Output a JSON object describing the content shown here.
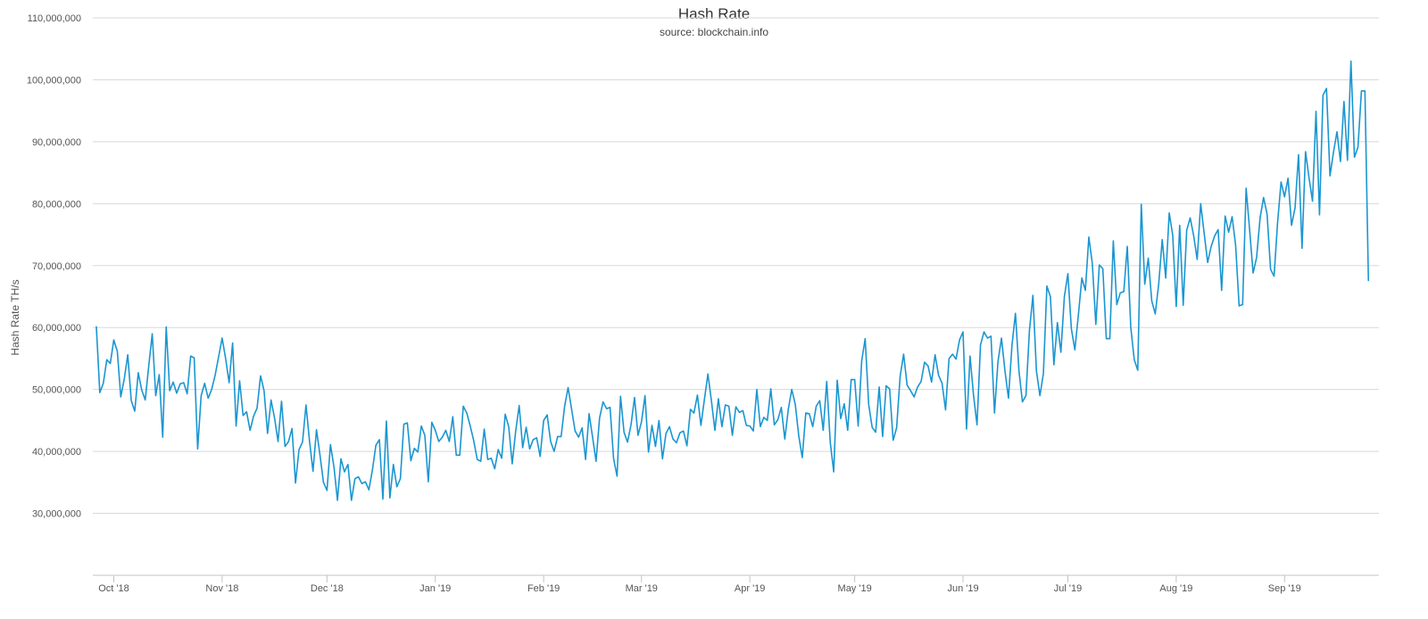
{
  "chart_data": {
    "type": "line",
    "title": "Hash Rate",
    "subtitle": "source: blockchain.info",
    "xlabel": "",
    "ylabel": "Hash Rate TH/s",
    "ylim": [
      20000000,
      110000000
    ],
    "yticks": [
      {
        "value": 30000000,
        "label": "30,000,000"
      },
      {
        "value": 40000000,
        "label": "40,000,000"
      },
      {
        "value": 50000000,
        "label": "50,000,000"
      },
      {
        "value": 60000000,
        "label": "60,000,000"
      },
      {
        "value": 70000000,
        "label": "70,000,000"
      },
      {
        "value": 80000000,
        "label": "80,000,000"
      },
      {
        "value": 90000000,
        "label": "90,000,000"
      },
      {
        "value": 100000000,
        "label": "100,000,000"
      },
      {
        "value": 110000000,
        "label": "110,000,000"
      }
    ],
    "xlim": [
      "2018-09-25",
      "2019-09-28"
    ],
    "xticks": [
      {
        "date": "2018-10-01",
        "label": "Oct '18"
      },
      {
        "date": "2018-11-01",
        "label": "Nov '18"
      },
      {
        "date": "2018-12-01",
        "label": "Dec '18"
      },
      {
        "date": "2019-01-01",
        "label": "Jan '19"
      },
      {
        "date": "2019-02-01",
        "label": "Feb '19"
      },
      {
        "date": "2019-03-01",
        "label": "Mar '19"
      },
      {
        "date": "2019-04-01",
        "label": "Apr '19"
      },
      {
        "date": "2019-05-01",
        "label": "May '19"
      },
      {
        "date": "2019-06-01",
        "label": "Jun '19"
      },
      {
        "date": "2019-07-01",
        "label": "Jul '19"
      },
      {
        "date": "2019-08-01",
        "label": "Aug '19"
      },
      {
        "date": "2019-09-01",
        "label": "Sep '19"
      }
    ],
    "grid": true,
    "legend": "none",
    "line_color": "#1a96d1",
    "series": [
      {
        "start_date": "2018-09-26",
        "step_days": 1,
        "values": [
          60.2,
          49.5,
          51.0,
          54.8,
          54.2,
          58.0,
          56.2,
          48.8,
          51.7,
          55.6,
          48.2,
          46.5,
          52.7,
          49.9,
          48.3,
          53.8,
          59.0,
          49.0,
          52.4,
          42.3,
          60.1,
          49.8,
          51.2,
          49.4,
          50.9,
          51.1,
          49.3,
          55.4,
          55.1,
          40.4,
          49.0,
          51.0,
          48.6,
          50.0,
          52.3,
          55.3,
          58.3,
          55.0,
          51.1,
          57.5,
          44.1,
          51.4,
          45.8,
          46.4,
          43.4,
          45.7,
          47.0,
          52.2,
          49.8,
          42.9,
          48.3,
          45.4,
          41.6,
          48.1,
          40.8,
          41.6,
          43.7,
          34.9,
          40.3,
          41.5,
          47.5,
          41.7,
          36.8,
          43.5,
          39.4,
          35.0,
          33.7,
          41.1,
          37.5,
          32.1,
          38.8,
          36.7,
          37.9,
          32.1,
          35.6,
          35.9,
          34.8,
          35.1,
          33.8,
          37.0,
          41.0,
          41.9,
          32.3,
          44.9,
          32.5,
          37.9,
          34.3,
          35.6,
          44.4,
          44.6,
          38.5,
          40.5,
          39.9,
          44.1,
          42.6,
          35.1,
          44.7,
          43.4,
          41.6,
          42.3,
          43.4,
          41.6,
          45.6,
          39.4,
          39.4,
          47.3,
          46.2,
          44.1,
          41.7,
          38.7,
          38.4,
          43.6,
          38.7,
          38.9,
          37.2,
          40.3,
          38.9,
          46.0,
          44.0,
          38.0,
          43.3,
          47.4,
          40.6,
          43.9,
          40.4,
          41.9,
          42.2,
          39.2,
          45.0,
          45.9,
          41.6,
          40.0,
          42.4,
          42.4,
          47.3,
          50.3,
          46.8,
          43.3,
          42.3,
          43.8,
          38.7,
          46.1,
          42.3,
          38.4,
          45.4,
          48.0,
          46.9,
          47.1,
          38.9,
          36.0,
          48.9,
          43.1,
          41.5,
          44.3,
          48.7,
          42.6,
          44.8,
          49.0,
          39.9,
          44.2,
          40.8,
          45.0,
          38.8,
          42.9,
          44.0,
          42.0,
          41.4,
          43.0,
          43.3,
          40.9,
          46.8,
          46.2,
          49.1,
          44.2,
          48.4,
          52.5,
          48.2,
          43.4,
          48.5,
          44.0,
          47.5,
          47.3,
          42.6,
          47.2,
          46.3,
          46.6,
          44.2,
          44.1,
          43.3,
          50.0,
          44.0,
          45.5,
          45.0,
          50.1,
          44.3,
          45.1,
          47.1,
          42.0,
          46.8,
          50.0,
          47.6,
          42.5,
          39.0,
          46.2,
          46.1,
          44.0,
          47.3,
          48.2,
          43.4,
          51.3,
          41.5,
          36.7,
          51.5,
          45.3,
          47.7,
          43.4,
          51.6,
          51.6,
          44.1,
          54.6,
          58.2,
          47.6,
          43.9,
          43.1,
          50.4,
          42.4,
          50.6,
          50.1,
          41.8,
          43.8,
          52.1,
          55.7,
          50.7,
          49.8,
          48.8,
          50.4,
          51.3,
          54.4,
          53.8,
          51.2,
          55.6,
          52.3,
          51.0,
          46.7,
          55.0,
          55.7,
          54.9,
          58.0,
          59.3,
          43.6,
          55.4,
          49.1,
          44.3,
          57.2,
          59.3,
          58.3,
          58.6,
          46.2,
          54.5,
          58.3,
          53.0,
          48.6,
          57.1,
          62.3,
          53.0,
          48.0,
          49.0,
          59.5,
          65.2,
          53.0,
          49.0,
          52.6,
          66.7,
          65.0,
          54.0,
          60.8,
          56.0,
          65.0,
          68.7,
          59.8,
          56.4,
          62.0,
          68.0,
          66.0,
          74.6,
          70.3,
          60.5,
          70.1,
          69.5,
          58.2,
          58.2,
          74.0,
          63.7,
          65.6,
          65.8,
          73.1,
          60.0,
          54.8,
          53.1,
          79.9,
          67.0,
          71.2,
          64.3,
          62.2,
          67.1,
          74.2,
          68.0,
          78.5,
          74.9,
          63.4,
          76.5,
          63.6,
          75.7,
          77.7,
          74.8,
          71.0,
          80.0,
          75.2,
          70.5,
          73.1,
          74.8,
          75.8,
          66.0,
          78.0,
          75.4,
          77.9,
          73.3,
          63.5,
          63.7,
          82.5,
          75.8,
          68.8,
          71.3,
          77.7,
          81.0,
          78.3,
          69.4,
          68.3,
          76.9,
          83.5,
          81.1,
          84.1,
          76.5,
          79.3,
          87.9,
          72.8,
          88.4,
          84.2,
          80.4,
          94.9,
          78.2,
          97.5,
          98.6,
          84.5,
          88.3,
          91.6,
          86.8,
          96.5,
          87.0,
          103.0,
          87.5,
          89.1,
          98.2,
          98.2,
          67.5
        ],
        "unit_multiplier": 1000000
      }
    ]
  }
}
